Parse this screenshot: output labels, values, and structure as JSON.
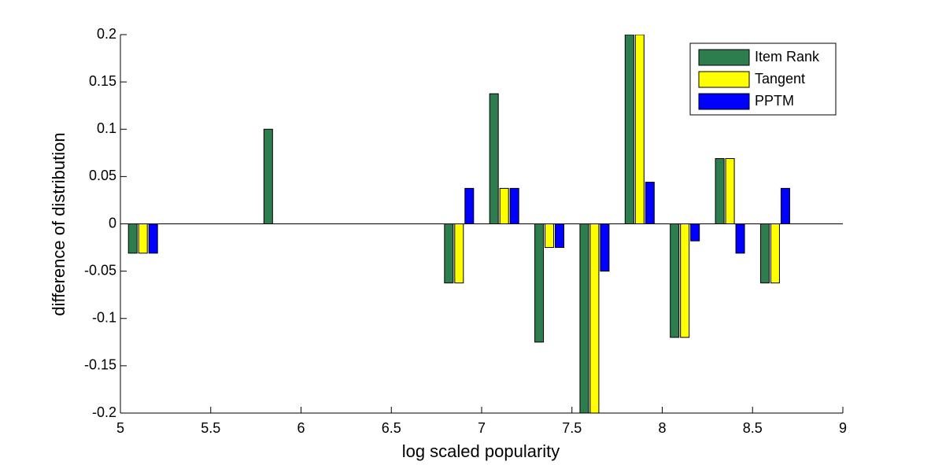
{
  "chart_data": {
    "type": "bar",
    "x": [
      5.125,
      5.875,
      6.875,
      7.125,
      7.375,
      7.625,
      7.875,
      8.125,
      8.375,
      8.625
    ],
    "series": [
      {
        "name": "Item Rank",
        "color": "#2e7d4f",
        "values": [
          -0.031,
          0.1,
          -0.0625,
          0.1375,
          -0.125,
          -0.2,
          0.2,
          -0.12,
          0.069,
          -0.0625
        ]
      },
      {
        "name": "Tangent",
        "color": "#ffff00",
        "values": [
          -0.031,
          0,
          -0.0625,
          0.0375,
          -0.025,
          -0.2,
          0.2,
          -0.12,
          0.069,
          -0.0625
        ]
      },
      {
        "name": "PPTM",
        "color": "#0000ff",
        "values": [
          -0.031,
          0,
          0.0375,
          0.0375,
          -0.025,
          -0.05,
          0.044,
          -0.018,
          -0.031,
          0.0375
        ]
      }
    ],
    "xlabel": "log scaled popularity",
    "ylabel": "difference of distribution",
    "xlim": [
      5,
      9
    ],
    "xticks": [
      5,
      5.5,
      6,
      6.5,
      7,
      7.5,
      8,
      8.5,
      9
    ],
    "ylim": [
      -0.2,
      0.2
    ],
    "yticks": [
      -0.2,
      -0.15,
      -0.1,
      -0.05,
      0,
      0.05,
      0.1,
      0.15,
      0.2
    ],
    "legend": "top-right"
  }
}
